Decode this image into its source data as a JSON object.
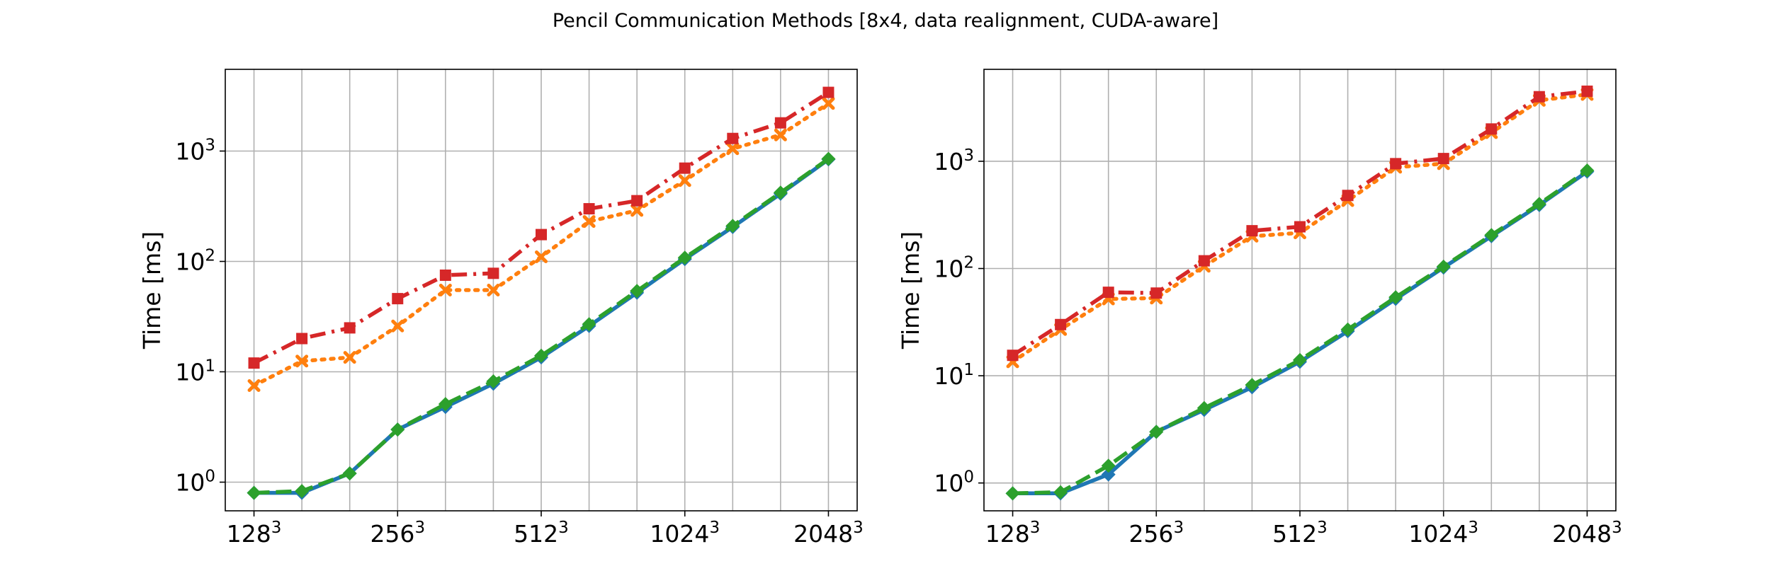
{
  "figure_title": "Pencil Communication Methods [8x4, data realignment, CUDA-aware]",
  "colors": {
    "blue": "#1f77b4",
    "orange": "#ff7f0e",
    "green": "#2ca02c",
    "red": "#d62728",
    "grid": "#b0b0b0"
  },
  "chart_data": [
    {
      "type": "line",
      "title": "",
      "xlabel": "",
      "ylabel": "Time [ms]",
      "yscale": "log",
      "ylim": [
        0.55,
        5500
      ],
      "xlim": [
        -0.6,
        12.6
      ],
      "grid": true,
      "x_tick_positions": [
        0,
        3,
        6,
        9,
        12
      ],
      "x_tick_labels": [
        {
          "base": "128",
          "exp": "3"
        },
        {
          "base": "256",
          "exp": "3"
        },
        {
          "base": "512",
          "exp": "3"
        },
        {
          "base": "1024",
          "exp": "3"
        },
        {
          "base": "2048",
          "exp": "3"
        }
      ],
      "x_grid_positions": [
        0,
        1,
        2,
        3,
        4,
        5,
        6,
        7,
        8,
        9,
        10,
        11,
        12
      ],
      "y_ticks": [
        {
          "value": 1,
          "base": "10",
          "exp": "0"
        },
        {
          "value": 10,
          "base": "10",
          "exp": "1"
        },
        {
          "value": 100,
          "base": "10",
          "exp": "2"
        },
        {
          "value": 1000,
          "base": "10",
          "exp": "3"
        }
      ],
      "x": [
        0,
        1,
        2,
        3,
        4,
        5,
        6,
        7,
        8,
        9,
        10,
        11,
        12
      ],
      "series": [
        {
          "color": "blue",
          "dash": "solid",
          "marker": "diamond",
          "values": [
            0.8,
            0.8,
            1.2,
            3.0,
            4.8,
            7.8,
            13.5,
            26,
            52,
            105,
            205,
            410,
            840
          ]
        },
        {
          "color": "green",
          "dash": "dashed",
          "marker": "diamond",
          "values": [
            0.8,
            0.83,
            1.2,
            3.0,
            5.1,
            8.2,
            14,
            27,
            54,
            108,
            210,
            420,
            850
          ]
        },
        {
          "color": "orange",
          "dash": "dotted",
          "marker": "x",
          "values": [
            7.5,
            12.5,
            13.5,
            26,
            55,
            55,
            110,
            230,
            290,
            540,
            1050,
            1400,
            2700
          ]
        },
        {
          "color": "red",
          "dash": "dashdot",
          "marker": "square",
          "values": [
            12,
            20,
            25,
            46,
            75,
            78,
            175,
            300,
            355,
            700,
            1300,
            1800,
            3400
          ]
        }
      ]
    },
    {
      "type": "line",
      "title": "",
      "xlabel": "",
      "ylabel": "Time [ms]",
      "yscale": "log",
      "ylim": [
        0.55,
        7200
      ],
      "xlim": [
        -0.6,
        12.6
      ],
      "grid": true,
      "x_tick_positions": [
        0,
        3,
        6,
        9,
        12
      ],
      "x_tick_labels": [
        {
          "base": "128",
          "exp": "3"
        },
        {
          "base": "256",
          "exp": "3"
        },
        {
          "base": "512",
          "exp": "3"
        },
        {
          "base": "1024",
          "exp": "3"
        },
        {
          "base": "2048",
          "exp": "3"
        }
      ],
      "x_grid_positions": [
        0,
        1,
        2,
        3,
        4,
        5,
        6,
        7,
        8,
        9,
        10,
        11,
        12
      ],
      "y_ticks": [
        {
          "value": 1,
          "base": "10",
          "exp": "0"
        },
        {
          "value": 10,
          "base": "10",
          "exp": "1"
        },
        {
          "value": 100,
          "base": "10",
          "exp": "2"
        },
        {
          "value": 1000,
          "base": "10",
          "exp": "3"
        }
      ],
      "x": [
        0,
        1,
        2,
        3,
        4,
        5,
        6,
        7,
        8,
        9,
        10,
        11,
        12
      ],
      "series": [
        {
          "color": "blue",
          "dash": "solid",
          "marker": "diamond",
          "values": [
            0.8,
            0.8,
            1.2,
            3.0,
            4.8,
            7.8,
            13.5,
            26,
            52,
            102,
            200,
            390,
            800
          ]
        },
        {
          "color": "green",
          "dash": "dashed",
          "marker": "diamond",
          "values": [
            0.8,
            0.82,
            1.45,
            3.0,
            5.0,
            8.2,
            14,
            27,
            54,
            104,
            205,
            400,
            820
          ]
        },
        {
          "color": "orange",
          "dash": "dotted",
          "marker": "x",
          "values": [
            13.5,
            27,
            52,
            53,
            105,
            200,
            215,
            430,
            880,
            950,
            1850,
            3700,
            4200
          ]
        },
        {
          "color": "red",
          "dash": "dashdot",
          "marker": "square",
          "values": [
            15.5,
            30,
            60,
            59,
            118,
            225,
            245,
            480,
            950,
            1060,
            2000,
            4000,
            4500
          ]
        }
      ]
    }
  ]
}
